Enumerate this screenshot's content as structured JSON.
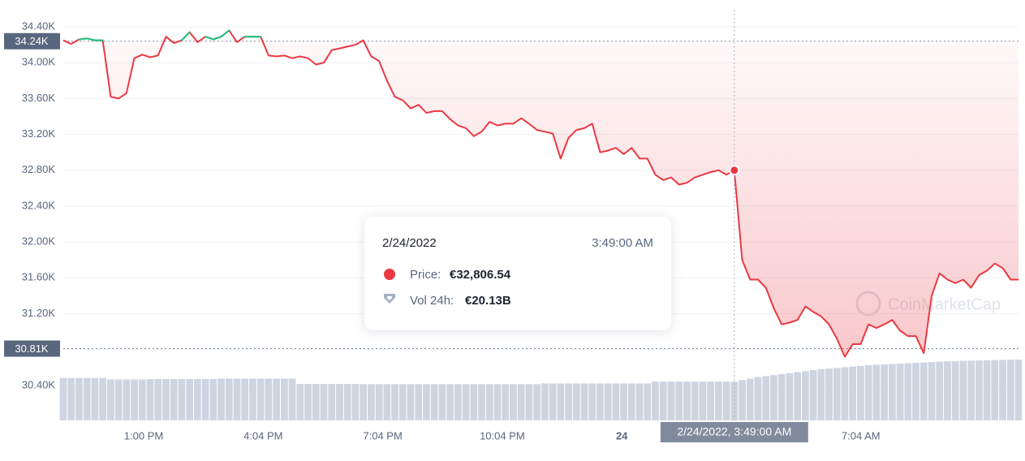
{
  "chart_data": {
    "type": "line",
    "series": [
      {
        "color": "#ea3943",
        "up_color": "#16c784",
        "values": [
          34250,
          34210,
          34260,
          34270,
          34250,
          34250,
          33620,
          33600,
          33660,
          34050,
          34090,
          34060,
          34080,
          34290,
          34220,
          34250,
          34340,
          34230,
          34290,
          34260,
          34290,
          34360,
          34230,
          34290,
          34290,
          34290,
          34080,
          34070,
          34080,
          34050,
          34070,
          34050,
          33980,
          34000,
          34140,
          34160,
          34180,
          34200,
          34250,
          34070,
          34020,
          33800,
          33620,
          33580,
          33490,
          33530,
          33440,
          33460,
          33460,
          33370,
          33300,
          33270,
          33180,
          33230,
          33340,
          33300,
          33320,
          33320,
          33380,
          33320,
          33250,
          33230,
          33210,
          32930,
          33160,
          33250,
          33270,
          33320,
          33000,
          33020,
          33050,
          32980,
          33050,
          32930,
          32930,
          32750,
          32690,
          32720,
          32640,
          32660,
          32720,
          32750,
          32780,
          32800,
          32750,
          32800,
          31800,
          31580,
          31580,
          31490,
          31260,
          31080,
          31100,
          31130,
          31280,
          31220,
          31170,
          31080,
          30920,
          30720,
          30860,
          30860,
          31080,
          31040,
          31080,
          31130,
          31010,
          30950,
          30950,
          30760,
          31400,
          31650,
          31580,
          31540,
          31580,
          31490,
          31630,
          31680,
          31760,
          31710,
          31580,
          31580
        ]
      }
    ],
    "volume": {
      "color": "#cfd5e0",
      "values": [
        21.5,
        21.5,
        21.5,
        21.5,
        21.5,
        21.5,
        20.8,
        20.8,
        20.8,
        20.8,
        20.8,
        21.0,
        21.0,
        21.0,
        21.0,
        21.0,
        21.0,
        21.0,
        21.0,
        21.0,
        21.2,
        21.2,
        21.2,
        21.2,
        21.2,
        21.2,
        21.2,
        21.2,
        21.2,
        21.2,
        18.5,
        18.5,
        18.5,
        18.5,
        18.5,
        18.5,
        18.5,
        18.5,
        18.4,
        18.4,
        18.4,
        18.4,
        18.4,
        18.4,
        18.4,
        18.4,
        18.4,
        18.4,
        18.4,
        18.4,
        18.4,
        18.4,
        18.4,
        18.4,
        18.4,
        18.4,
        18.4,
        18.4,
        18.4,
        18.4,
        18.4,
        18.8,
        18.8,
        18.8,
        18.8,
        18.8,
        18.8,
        18.8,
        18.8,
        18.8,
        18.8,
        18.8,
        18.8,
        18.8,
        18.8,
        19.7,
        19.7,
        19.7,
        19.7,
        19.7,
        19.7,
        19.7,
        19.7,
        19.7,
        19.7,
        19.7,
        20.5,
        21.2,
        22,
        22.5,
        23,
        23.5,
        24,
        24.5,
        25,
        25.5,
        26,
        26.3,
        26.6,
        27,
        27.3,
        27.6,
        28,
        28.2,
        28.4,
        28.6,
        28.8,
        29,
        29.2,
        29.4,
        29.6,
        29.8,
        30,
        30.1,
        30.2,
        30.3,
        30.4,
        30.5,
        30.6,
        30.7,
        30.8,
        30.8
      ]
    },
    "ylim": [
      30000,
      34600
    ],
    "yticks": [
      {
        "value": 30400,
        "label": "30.40K"
      },
      {
        "value": 30800,
        "label": "30.80K"
      },
      {
        "value": 31200,
        "label": "31.20K"
      },
      {
        "value": 31600,
        "label": "31.60K"
      },
      {
        "value": 32000,
        "label": "32.00K"
      },
      {
        "value": 32400,
        "label": "32.40K"
      },
      {
        "value": 32800,
        "label": "32.80K"
      },
      {
        "value": 33200,
        "label": "33.20K"
      },
      {
        "value": 33600,
        "label": "33.60K"
      },
      {
        "value": 34000,
        "label": "34.00K"
      },
      {
        "value": 34400,
        "label": "34.40K"
      }
    ],
    "x_labels": [
      "1:00 PM",
      "4:04 PM",
      "7:04 PM",
      "10:04 PM",
      "24",
      null,
      "7:04 AM"
    ],
    "grid": true,
    "reference_lines": [
      {
        "value": 34240,
        "label": "34.24K"
      },
      {
        "value": 30810,
        "label": "30.81K"
      }
    ],
    "crosshair_label": "2/24/2022, 3:49:00 AM",
    "tooltip": {
      "date": "2/24/2022",
      "time": "3:49:00 AM",
      "price_label": "Price:",
      "price_value": "€32,806.54",
      "volume_label": "Vol 24h:",
      "volume_value": "€20.13B"
    },
    "watermark": "CoinMarketCap"
  }
}
